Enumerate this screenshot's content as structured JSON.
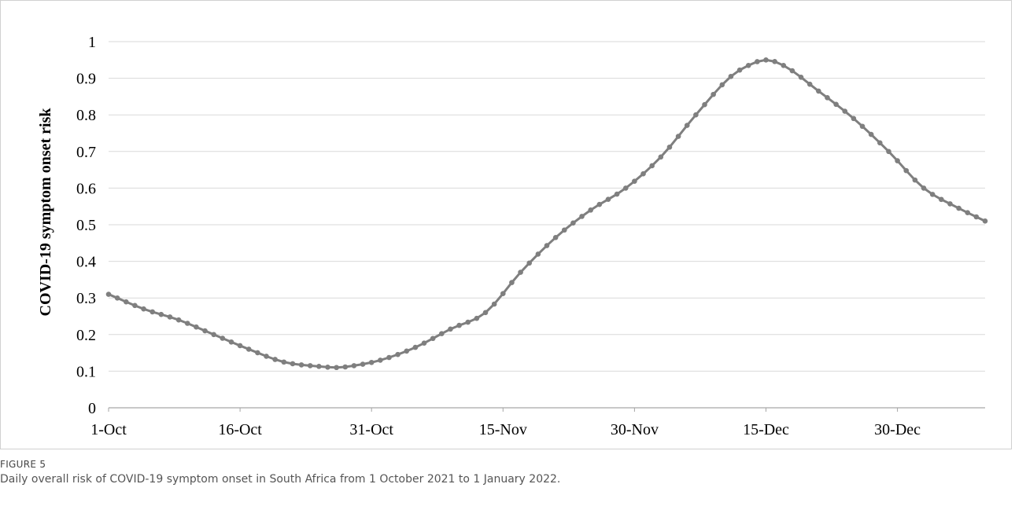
{
  "figure": {
    "label": "FIGURE 5",
    "caption": "Daily overall risk of COVID-19 symptom onset in South Africa from 1 October 2021 to 1 January 2022."
  },
  "chart_data": {
    "type": "line",
    "title": "",
    "xlabel": "",
    "ylabel": "COVID-19 symptom onset risk",
    "ylim": [
      0,
      1
    ],
    "yticks": [
      0,
      0.1,
      0.2,
      0.3,
      0.4,
      0.5,
      0.6,
      0.7,
      0.8,
      0.9,
      1
    ],
    "ytick_labels": [
      "0",
      "0.1",
      "0.2",
      "0.3",
      "0.4",
      "0.5",
      "0.6",
      "0.7",
      "0.8",
      "0.9",
      "1"
    ],
    "xlim": [
      "2021-10-01",
      "2022-01-09"
    ],
    "xtick_dates": [
      "2021-10-01",
      "2021-10-16",
      "2021-10-31",
      "2021-11-15",
      "2021-11-30",
      "2021-12-15",
      "2021-12-30"
    ],
    "xtick_labels": [
      "1-Oct",
      "16-Oct",
      "31-Oct",
      "15-Nov",
      "30-Nov",
      "15-Dec",
      "30-Dec"
    ],
    "grid": "horizontal",
    "line_color": "#7f7f7f",
    "marker": "circle",
    "series": [
      {
        "name": "",
        "x": [
          "2021-10-01",
          "2021-10-05",
          "2021-10-09",
          "2021-10-13",
          "2021-10-17",
          "2021-10-21",
          "2021-10-25",
          "2021-10-27",
          "2021-10-29",
          "2021-11-01",
          "2021-11-05",
          "2021-11-09",
          "2021-11-13",
          "2021-11-17",
          "2021-11-21",
          "2021-11-25",
          "2021-11-29",
          "2021-12-03",
          "2021-12-07",
          "2021-12-11",
          "2021-12-13",
          "2021-12-15",
          "2021-12-17",
          "2021-12-21",
          "2021-12-25",
          "2021-12-29",
          "2022-01-02",
          "2022-01-06",
          "2022-01-09"
        ],
        "y": [
          0.31,
          0.27,
          0.24,
          0.2,
          0.16,
          0.125,
          0.113,
          0.11,
          0.115,
          0.13,
          0.165,
          0.215,
          0.26,
          0.37,
          0.465,
          0.54,
          0.6,
          0.685,
          0.8,
          0.905,
          0.935,
          0.95,
          0.935,
          0.865,
          0.79,
          0.7,
          0.6,
          0.545,
          0.51
        ]
      }
    ]
  }
}
